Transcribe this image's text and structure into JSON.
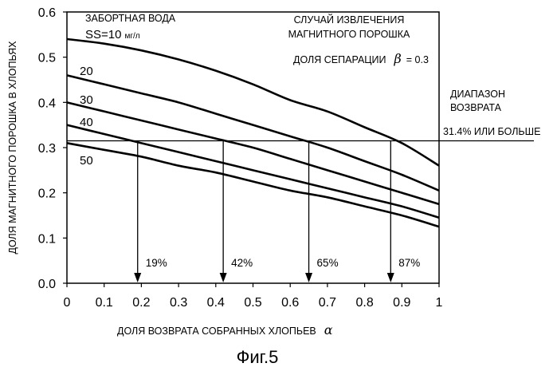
{
  "chart_data": {
    "type": "line",
    "xlabel": "ДОЛЯ ВОЗВРАТА СОБРАННЫХ ХЛОПЬЕВ",
    "xlabel_symbol": "α",
    "ylabel": "ДОЛЯ МАГНИТНОГО ПОРОШКА В ХЛОПЬЯХ",
    "xlim": [
      0,
      1
    ],
    "ylim": [
      0,
      0.6
    ],
    "x_ticks": [
      "0",
      "0.1",
      "0.2",
      "0.3",
      "0.4",
      "0.5",
      "0.6",
      "0.7",
      "0.8",
      "0.9",
      "1"
    ],
    "y_ticks": [
      "0.0",
      "0.1",
      "0.2",
      "0.3",
      "0.4",
      "0.5",
      "0.6"
    ],
    "x": [
      0,
      0.1,
      0.2,
      0.3,
      0.4,
      0.5,
      0.6,
      0.7,
      0.8,
      0.9,
      1.0
    ],
    "series": [
      {
        "name": "SS=10",
        "values": [
          0.54,
          0.53,
          0.515,
          0.495,
          0.47,
          0.44,
          0.405,
          0.38,
          0.345,
          0.31,
          0.26
        ]
      },
      {
        "name": "20",
        "values": [
          0.46,
          0.44,
          0.42,
          0.4,
          0.375,
          0.35,
          0.325,
          0.3,
          0.27,
          0.24,
          0.205
        ]
      },
      {
        "name": "30",
        "values": [
          0.4,
          0.38,
          0.36,
          0.34,
          0.32,
          0.3,
          0.275,
          0.25,
          0.225,
          0.2,
          0.175
        ]
      },
      {
        "name": "40",
        "values": [
          0.35,
          0.33,
          0.31,
          0.29,
          0.27,
          0.25,
          0.23,
          0.21,
          0.19,
          0.17,
          0.145
        ]
      },
      {
        "name": "50",
        "values": [
          0.31,
          0.295,
          0.28,
          0.26,
          0.245,
          0.225,
          0.205,
          0.19,
          0.17,
          0.15,
          0.125
        ]
      }
    ],
    "threshold": {
      "value": 0.315,
      "label": "31.4% ИЛИ БОЛЬШЕ"
    },
    "arrows": [
      {
        "x": 0.19,
        "label": "19%"
      },
      {
        "x": 0.42,
        "label": "42%"
      },
      {
        "x": 0.65,
        "label": "65%"
      },
      {
        "x": 0.87,
        "label": "87%"
      }
    ],
    "annotations": {
      "intake_water": "ЗАБОРТНАЯ ВОДА",
      "ss_prefix": "SS=10",
      "ss_unit": "мг/л",
      "case_line1": "СЛУЧАЙ ИЗВЛЕЧЕНИЯ",
      "case_line2": "МАГНИТНОГО ПОРОШКА",
      "separation": "ДОЛЯ СЕПАРАЦИИ",
      "separation_beta": "β",
      "separation_value": "= 0.3",
      "range_line1": "ДИАПАЗОН",
      "range_line2": "ВОЗВРАТА"
    },
    "caption": "Фиг.5",
    "grid": false,
    "legend": "none"
  }
}
